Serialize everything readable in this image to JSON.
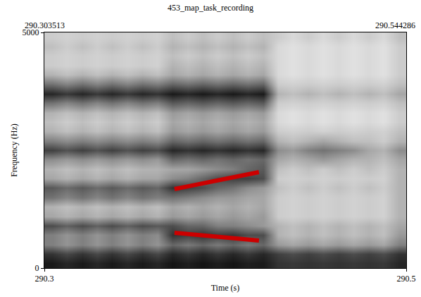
{
  "chart_data": {
    "type": "heatmap",
    "title": "453_map_task_recording",
    "x_label": "Time (s)",
    "y_label": "Frequency (Hz)",
    "xlim": [
      290.303513,
      290.544286
    ],
    "xticks": [
      {
        "value": 290.303513,
        "label": "290.3"
      },
      {
        "value": 290.544286,
        "label": "290.5"
      }
    ],
    "ylim": [
      0,
      5000
    ],
    "yticks": [
      0,
      5000
    ],
    "grid": false,
    "annotations": [
      {
        "text": "290.303513",
        "x": 290.303513
      },
      {
        "text": "290.544286",
        "x": 290.544286
      }
    ],
    "x": [
      290.3085,
      290.3186,
      290.3286,
      290.3386,
      290.3487,
      290.3587,
      290.3688,
      290.3788,
      290.3888,
      290.3989,
      290.4089,
      290.4189,
      290.429,
      290.439,
      290.4491,
      290.4591,
      290.4691,
      290.4792,
      290.4892,
      290.4992,
      290.5093,
      290.5193,
      290.5293,
      290.5394
    ],
    "y": [
      100,
      300,
      500,
      700,
      900,
      1100,
      1300,
      1500,
      1700,
      1900,
      2100,
      2300,
      2500,
      2700,
      2900,
      3100,
      3300,
      3500,
      3700,
      3900,
      4100,
      4300,
      4500,
      4700,
      4900
    ],
    "zlim": [
      0,
      1
    ],
    "cells": [
      [
        0.9,
        0.85,
        0.9,
        0.85,
        0.9,
        0.85,
        0.9,
        0.85,
        0.92,
        0.88,
        0.92,
        0.88,
        0.92,
        0.88,
        0.9,
        0.8,
        0.78,
        0.8,
        0.78,
        0.8,
        0.78,
        0.8,
        0.78,
        0.85
      ],
      [
        0.8,
        0.72,
        0.8,
        0.72,
        0.8,
        0.72,
        0.8,
        0.72,
        0.85,
        0.78,
        0.85,
        0.78,
        0.85,
        0.78,
        0.85,
        0.75,
        0.7,
        0.75,
        0.7,
        0.75,
        0.7,
        0.75,
        0.7,
        0.8
      ],
      [
        0.5,
        0.42,
        0.5,
        0.42,
        0.5,
        0.42,
        0.5,
        0.42,
        0.6,
        0.52,
        0.6,
        0.52,
        0.6,
        0.52,
        0.6,
        0.4,
        0.35,
        0.4,
        0.35,
        0.4,
        0.35,
        0.4,
        0.35,
        0.5
      ],
      [
        0.5,
        0.42,
        0.5,
        0.42,
        0.5,
        0.42,
        0.5,
        0.45,
        0.8,
        0.75,
        0.8,
        0.75,
        0.78,
        0.7,
        0.7,
        0.3,
        0.25,
        0.3,
        0.25,
        0.3,
        0.25,
        0.3,
        0.25,
        0.4
      ],
      [
        0.7,
        0.62,
        0.7,
        0.62,
        0.7,
        0.62,
        0.7,
        0.65,
        0.7,
        0.6,
        0.6,
        0.5,
        0.5,
        0.45,
        0.4,
        0.3,
        0.25,
        0.3,
        0.25,
        0.3,
        0.25,
        0.3,
        0.25,
        0.35
      ],
      [
        0.35,
        0.3,
        0.35,
        0.3,
        0.35,
        0.3,
        0.35,
        0.3,
        0.4,
        0.35,
        0.4,
        0.35,
        0.4,
        0.35,
        0.4,
        0.2,
        0.18,
        0.2,
        0.18,
        0.2,
        0.18,
        0.2,
        0.18,
        0.3
      ],
      [
        0.3,
        0.25,
        0.3,
        0.25,
        0.3,
        0.25,
        0.3,
        0.25,
        0.35,
        0.3,
        0.35,
        0.3,
        0.35,
        0.3,
        0.35,
        0.2,
        0.18,
        0.2,
        0.18,
        0.2,
        0.18,
        0.2,
        0.18,
        0.3
      ],
      [
        0.55,
        0.48,
        0.55,
        0.48,
        0.55,
        0.48,
        0.55,
        0.5,
        0.55,
        0.5,
        0.45,
        0.4,
        0.4,
        0.35,
        0.35,
        0.2,
        0.18,
        0.2,
        0.18,
        0.2,
        0.18,
        0.2,
        0.18,
        0.3
      ],
      [
        0.65,
        0.58,
        0.65,
        0.58,
        0.65,
        0.58,
        0.65,
        0.6,
        0.8,
        0.75,
        0.7,
        0.6,
        0.55,
        0.45,
        0.4,
        0.25,
        0.2,
        0.25,
        0.2,
        0.25,
        0.2,
        0.25,
        0.2,
        0.3
      ],
      [
        0.35,
        0.3,
        0.35,
        0.3,
        0.35,
        0.3,
        0.35,
        0.35,
        0.45,
        0.5,
        0.6,
        0.7,
        0.75,
        0.75,
        0.7,
        0.2,
        0.18,
        0.2,
        0.18,
        0.2,
        0.18,
        0.2,
        0.18,
        0.3
      ],
      [
        0.3,
        0.25,
        0.3,
        0.25,
        0.3,
        0.25,
        0.3,
        0.3,
        0.35,
        0.35,
        0.4,
        0.45,
        0.5,
        0.6,
        0.65,
        0.25,
        0.2,
        0.25,
        0.2,
        0.25,
        0.2,
        0.25,
        0.2,
        0.3
      ],
      [
        0.45,
        0.4,
        0.45,
        0.4,
        0.45,
        0.4,
        0.45,
        0.4,
        0.6,
        0.55,
        0.6,
        0.55,
        0.6,
        0.55,
        0.6,
        0.35,
        0.3,
        0.35,
        0.4,
        0.35,
        0.3,
        0.3,
        0.25,
        0.35
      ],
      [
        0.75,
        0.68,
        0.75,
        0.68,
        0.75,
        0.68,
        0.75,
        0.7,
        0.85,
        0.8,
        0.85,
        0.8,
        0.85,
        0.8,
        0.85,
        0.45,
        0.4,
        0.5,
        0.55,
        0.5,
        0.45,
        0.35,
        0.3,
        0.45
      ],
      [
        0.5,
        0.45,
        0.5,
        0.45,
        0.5,
        0.45,
        0.5,
        0.45,
        0.6,
        0.55,
        0.6,
        0.55,
        0.6,
        0.55,
        0.6,
        0.3,
        0.25,
        0.3,
        0.35,
        0.3,
        0.25,
        0.25,
        0.2,
        0.3
      ],
      [
        0.3,
        0.25,
        0.3,
        0.25,
        0.3,
        0.25,
        0.3,
        0.25,
        0.4,
        0.35,
        0.4,
        0.35,
        0.4,
        0.35,
        0.4,
        0.2,
        0.18,
        0.2,
        0.18,
        0.2,
        0.18,
        0.2,
        0.18,
        0.25
      ],
      [
        0.25,
        0.2,
        0.25,
        0.2,
        0.25,
        0.2,
        0.25,
        0.2,
        0.35,
        0.3,
        0.35,
        0.3,
        0.35,
        0.3,
        0.35,
        0.15,
        0.12,
        0.15,
        0.12,
        0.15,
        0.12,
        0.15,
        0.12,
        0.2
      ],
      [
        0.3,
        0.25,
        0.3,
        0.25,
        0.3,
        0.25,
        0.3,
        0.25,
        0.4,
        0.35,
        0.4,
        0.35,
        0.4,
        0.35,
        0.4,
        0.15,
        0.12,
        0.15,
        0.12,
        0.15,
        0.12,
        0.15,
        0.12,
        0.2
      ],
      [
        0.55,
        0.48,
        0.55,
        0.48,
        0.55,
        0.48,
        0.55,
        0.5,
        0.65,
        0.6,
        0.65,
        0.6,
        0.65,
        0.6,
        0.65,
        0.2,
        0.18,
        0.2,
        0.18,
        0.2,
        0.18,
        0.2,
        0.18,
        0.25
      ],
      [
        0.85,
        0.78,
        0.85,
        0.78,
        0.85,
        0.78,
        0.85,
        0.8,
        0.9,
        0.85,
        0.9,
        0.85,
        0.9,
        0.85,
        0.9,
        0.3,
        0.25,
        0.3,
        0.25,
        0.3,
        0.25,
        0.3,
        0.25,
        0.35
      ],
      [
        0.55,
        0.48,
        0.55,
        0.48,
        0.55,
        0.48,
        0.55,
        0.5,
        0.6,
        0.55,
        0.6,
        0.55,
        0.6,
        0.55,
        0.6,
        0.2,
        0.18,
        0.2,
        0.18,
        0.2,
        0.18,
        0.2,
        0.18,
        0.25
      ],
      [
        0.3,
        0.25,
        0.3,
        0.25,
        0.3,
        0.25,
        0.3,
        0.25,
        0.35,
        0.3,
        0.35,
        0.3,
        0.35,
        0.3,
        0.35,
        0.15,
        0.12,
        0.15,
        0.12,
        0.15,
        0.12,
        0.15,
        0.12,
        0.2
      ],
      [
        0.2,
        0.18,
        0.2,
        0.18,
        0.2,
        0.18,
        0.2,
        0.18,
        0.3,
        0.25,
        0.3,
        0.25,
        0.3,
        0.25,
        0.3,
        0.15,
        0.12,
        0.15,
        0.12,
        0.15,
        0.12,
        0.15,
        0.12,
        0.2
      ],
      [
        0.2,
        0.18,
        0.2,
        0.18,
        0.2,
        0.18,
        0.2,
        0.18,
        0.25,
        0.2,
        0.25,
        0.2,
        0.25,
        0.2,
        0.25,
        0.15,
        0.12,
        0.15,
        0.12,
        0.15,
        0.12,
        0.15,
        0.12,
        0.2
      ],
      [
        0.25,
        0.2,
        0.25,
        0.2,
        0.25,
        0.2,
        0.25,
        0.2,
        0.3,
        0.25,
        0.3,
        0.25,
        0.3,
        0.25,
        0.3,
        0.15,
        0.12,
        0.15,
        0.12,
        0.15,
        0.12,
        0.15,
        0.12,
        0.2
      ],
      [
        0.2,
        0.18,
        0.2,
        0.18,
        0.2,
        0.18,
        0.2,
        0.18,
        0.25,
        0.2,
        0.25,
        0.2,
        0.25,
        0.2,
        0.25,
        0.2,
        0.15,
        0.2,
        0.15,
        0.2,
        0.15,
        0.2,
        0.15,
        0.25
      ]
    ],
    "series": [
      {
        "type": "line",
        "color": "#cc0000",
        "line_style": "solid",
        "x": [
          290.3901,
          290.4463
        ],
        "values": [
          1677,
          2036
        ]
      },
      {
        "type": "line",
        "color": "#cc0000",
        "line_style": "solid",
        "x": [
          290.3901,
          290.4463
        ],
        "values": [
          749,
          584
        ]
      }
    ]
  }
}
